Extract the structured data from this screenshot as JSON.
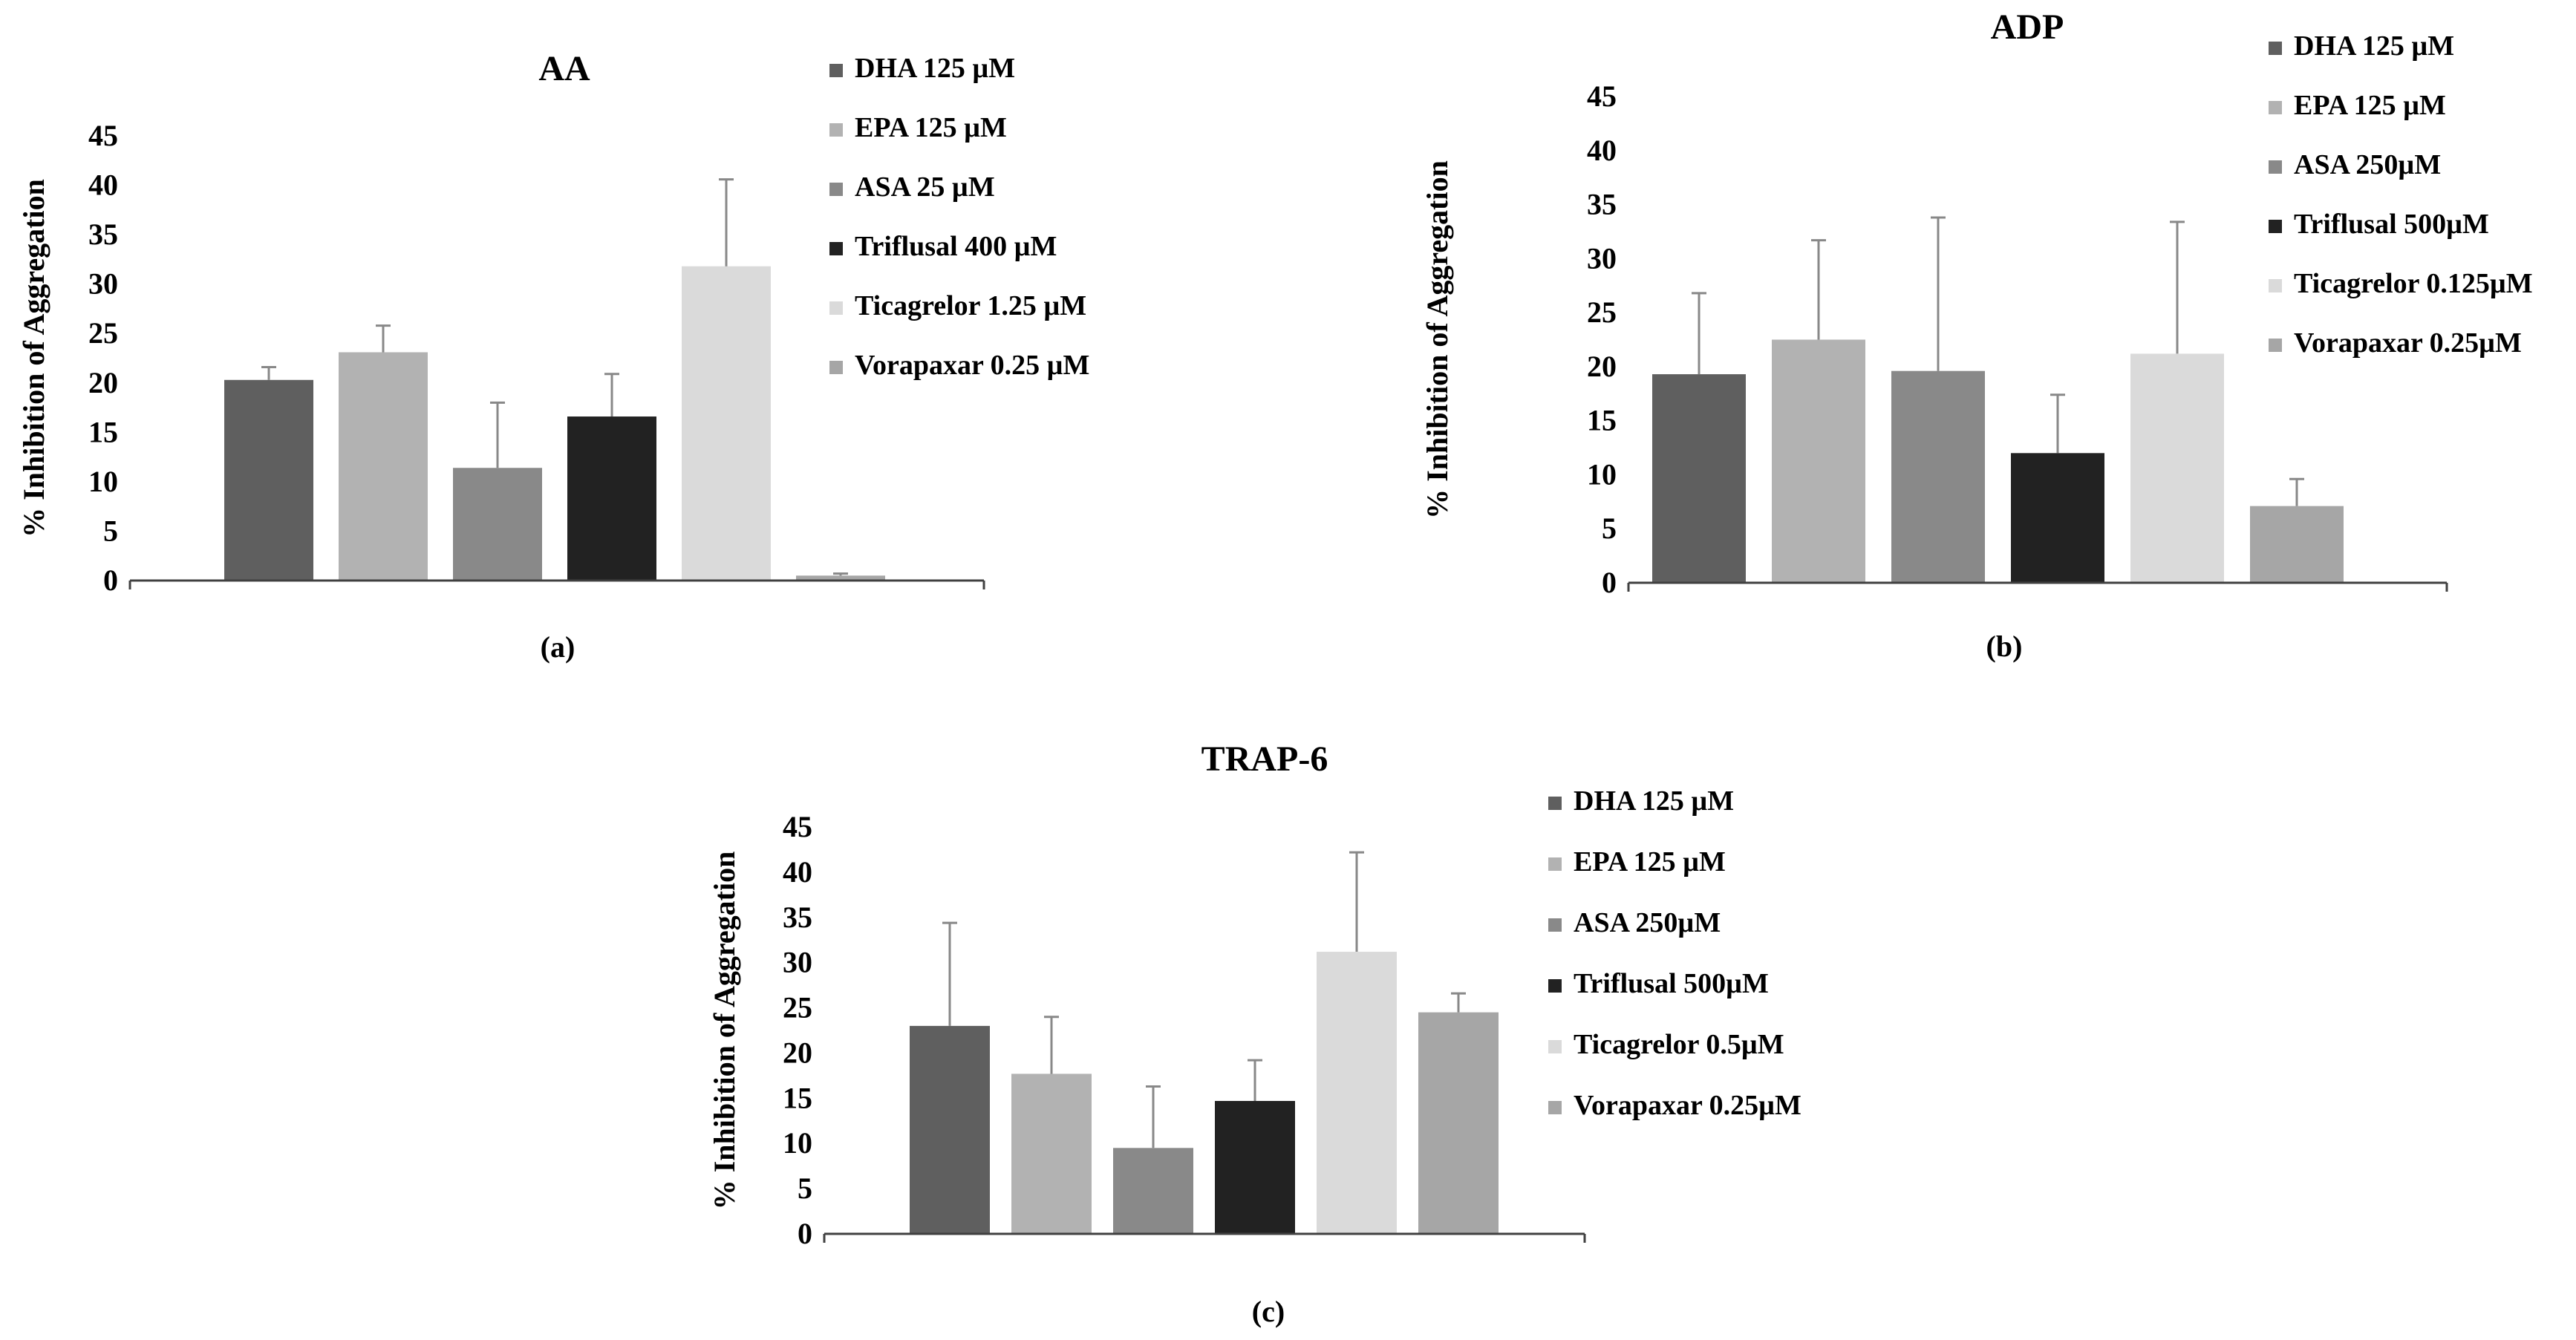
{
  "chart_data": [
    {
      "type": "bar",
      "title": "AA",
      "caption": "(a)",
      "ylabel": "% Inhibition of Aggregation",
      "xlabel": "",
      "ylim": [
        0,
        45
      ],
      "yticks": [
        "0",
        "5",
        "10",
        "15",
        "20",
        "25",
        "30",
        "35",
        "40",
        "45"
      ],
      "categories": [
        "DHA 125 µM",
        "EPA 125 µM",
        "ASA 25 µM",
        "Triflusal 400 µM",
        "Ticagrelor 1.25 µM",
        "Vorapaxar 0.25 µM"
      ],
      "values": [
        20.3,
        23.1,
        11.4,
        16.6,
        31.8,
        0.5
      ],
      "errors": [
        1.3,
        2.7,
        6.6,
        4.3,
        8.8,
        0.2
      ],
      "colors": [
        "#5f5f5f",
        "#b2b2b2",
        "#898989",
        "#222222",
        "#dadada",
        "#a6a6a6"
      ],
      "legend": "right"
    },
    {
      "type": "bar",
      "title": "ADP",
      "caption": "(b)",
      "ylabel": "% Inhibition of Aggregation",
      "xlabel": "",
      "ylim": [
        0,
        45
      ],
      "yticks": [
        "0",
        "5",
        "10",
        "15",
        "20",
        "25",
        "30",
        "35",
        "40",
        "45"
      ],
      "categories": [
        "DHA 125 µM",
        "EPA 125 µM",
        "ASA 250µM",
        "Triflusal 500µM",
        "Ticagrelor 0.125µM",
        "Vorapaxar 0.25µM"
      ],
      "values": [
        19.3,
        22.5,
        19.6,
        12.0,
        21.2,
        7.1
      ],
      "errors": [
        7.5,
        9.2,
        14.2,
        5.4,
        12.2,
        2.5
      ],
      "colors": [
        "#5f5f5f",
        "#b2b2b2",
        "#898989",
        "#222222",
        "#dadada",
        "#a6a6a6"
      ],
      "legend": "right"
    },
    {
      "type": "bar",
      "title": "TRAP-6",
      "caption": "(c)",
      "ylabel": "% Inhibition of Aggregation",
      "xlabel": "",
      "ylim": [
        0,
        45
      ],
      "yticks": [
        "0",
        "5",
        "10",
        "15",
        "20",
        "25",
        "30",
        "35",
        "40",
        "45"
      ],
      "categories": [
        "DHA 125 µM",
        "EPA 125 µM",
        "ASA 250µM",
        "Triflusal 500µM",
        "Ticagrelor 0.5µM",
        "Vorapaxar 0.25µM"
      ],
      "values": [
        23.0,
        17.7,
        9.5,
        14.7,
        31.2,
        24.5
      ],
      "errors": [
        11.4,
        6.3,
        6.8,
        4.5,
        11.0,
        2.1
      ],
      "colors": [
        "#5f5f5f",
        "#b2b2b2",
        "#898989",
        "#222222",
        "#dadada",
        "#a6a6a6"
      ],
      "legend": "right"
    }
  ]
}
